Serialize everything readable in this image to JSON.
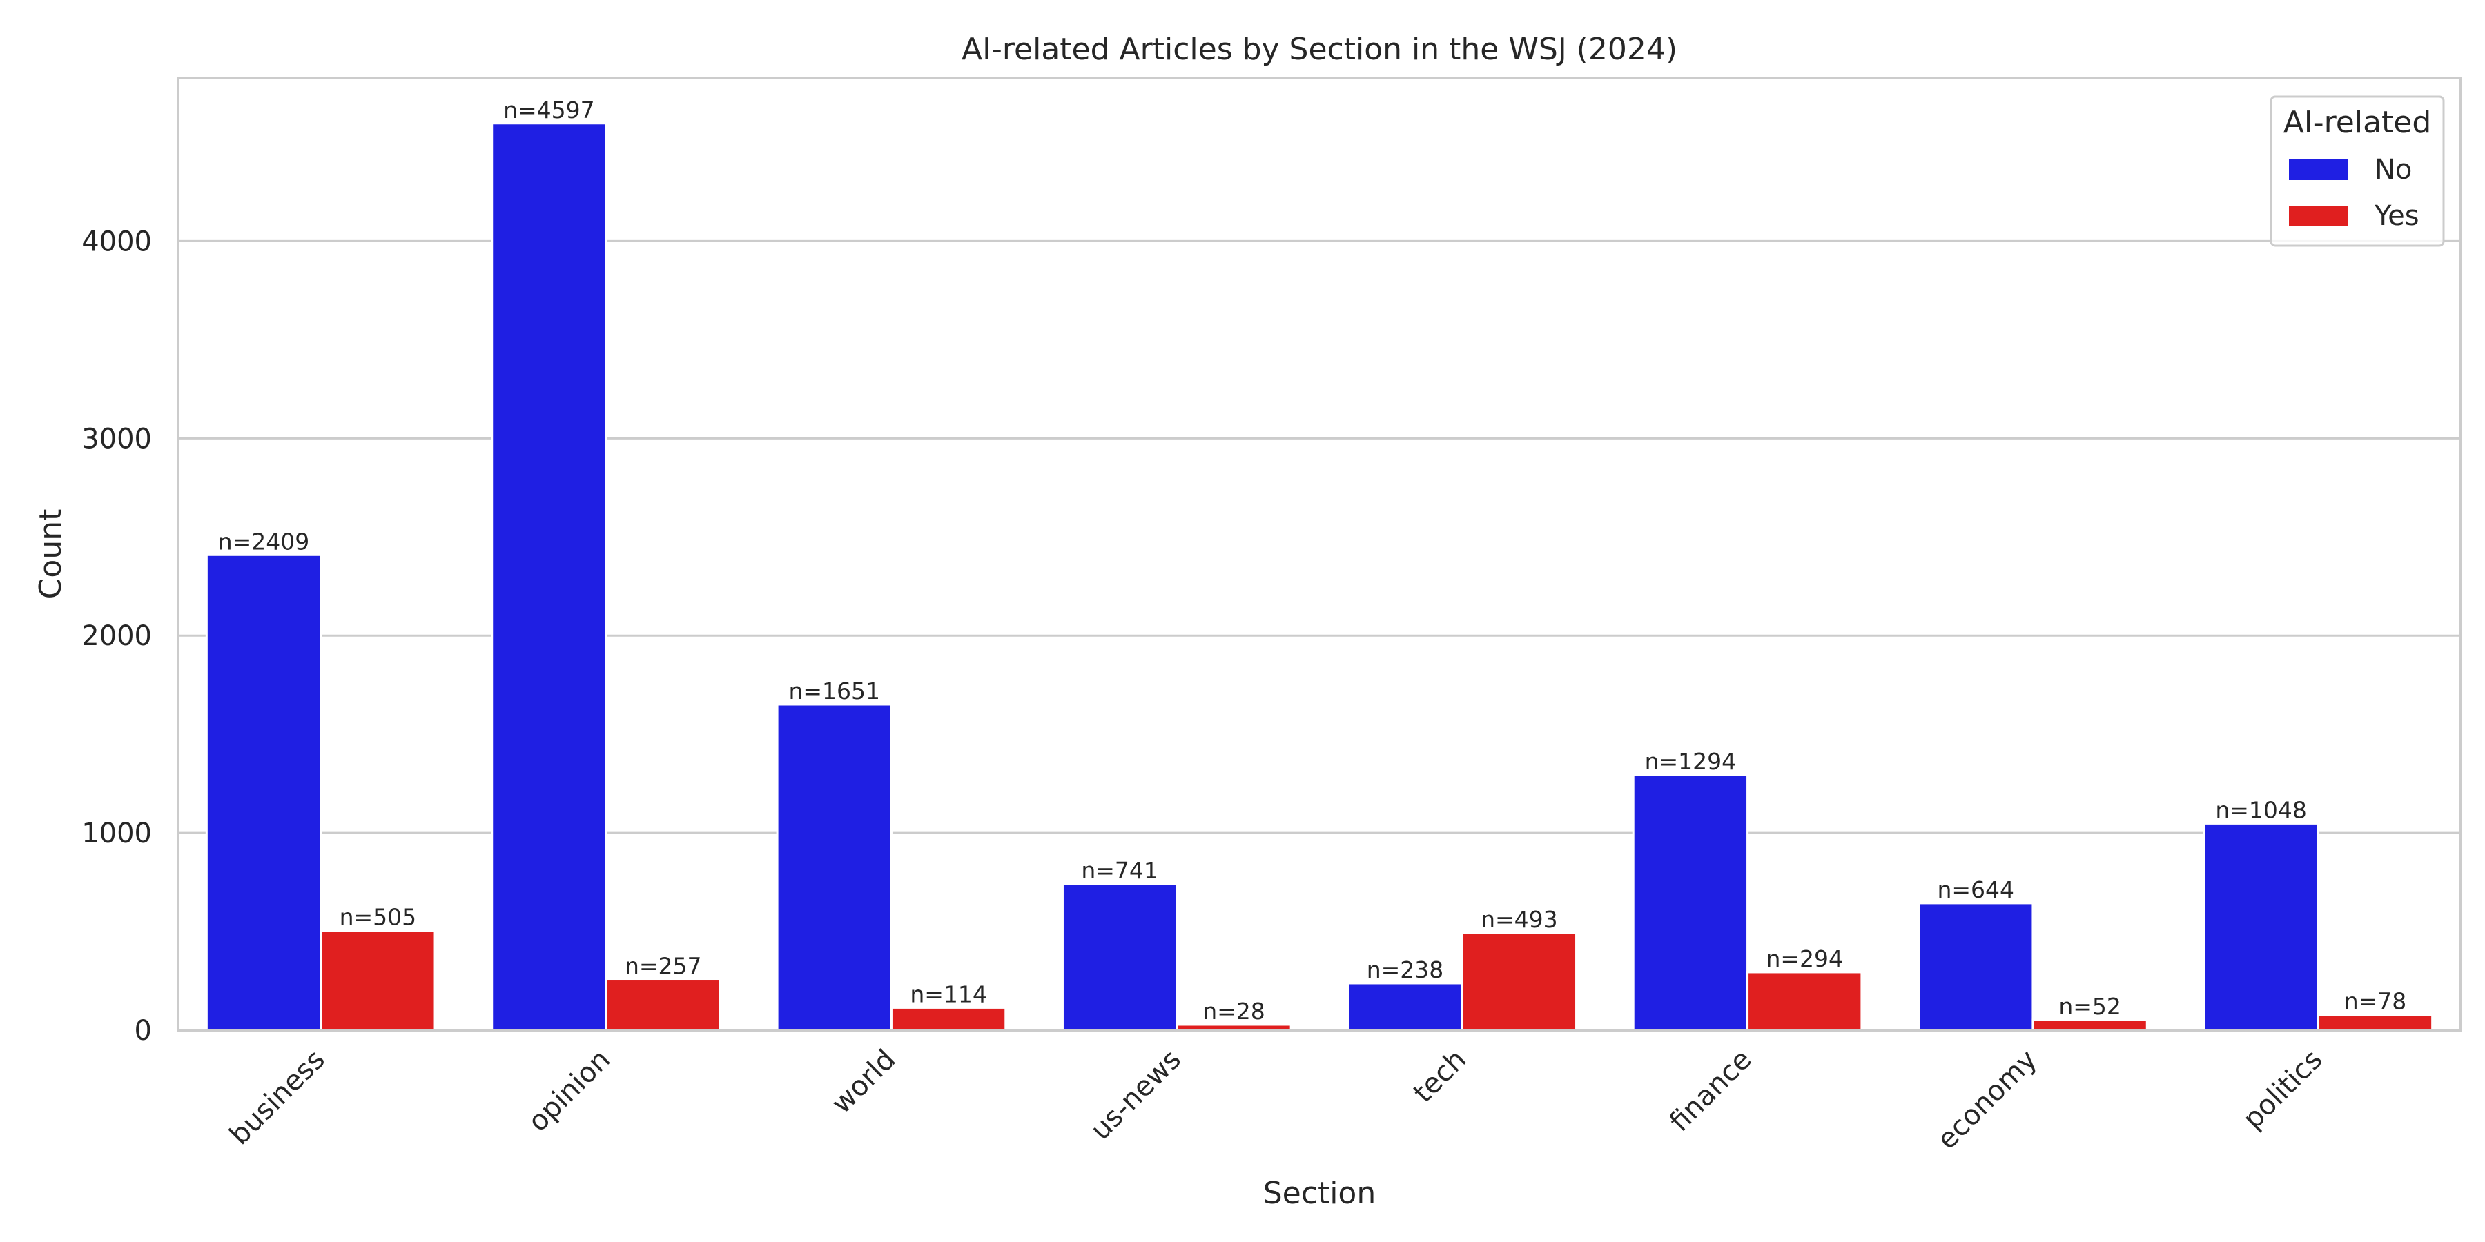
{
  "chart_data": {
    "type": "bar",
    "title": "AI-related Articles by Section in the WSJ (2024)",
    "xlabel": "Section",
    "ylabel": "Count",
    "categories": [
      "business",
      "opinion",
      "world",
      "us-news",
      "tech",
      "finance",
      "economy",
      "politics"
    ],
    "series": [
      {
        "name": "No",
        "color": "#1f1fe3",
        "values": [
          2409,
          4597,
          1651,
          741,
          238,
          1294,
          644,
          1048
        ],
        "labels": [
          "n=2409",
          "n=4597",
          "n=1651",
          "n=741",
          "n=238",
          "n=1294",
          "n=644",
          "n=1048"
        ]
      },
      {
        "name": "Yes",
        "color": "#e01f1f",
        "values": [
          505,
          257,
          114,
          28,
          493,
          294,
          52,
          78
        ],
        "labels": [
          "n=505",
          "n=257",
          "n=114",
          "n=28",
          "n=493",
          "n=294",
          "n=52",
          "n=78"
        ]
      }
    ],
    "yticks": [
      0,
      1000,
      2000,
      3000,
      4000
    ],
    "ytick_labels": [
      "0",
      "1000",
      "2000",
      "3000",
      "4000"
    ],
    "ylim": [
      0,
      4827
    ],
    "grid": "horizontal",
    "legend": {
      "title": "AI-related",
      "placement": "top-right",
      "entries": [
        "No",
        "Yes"
      ]
    }
  }
}
